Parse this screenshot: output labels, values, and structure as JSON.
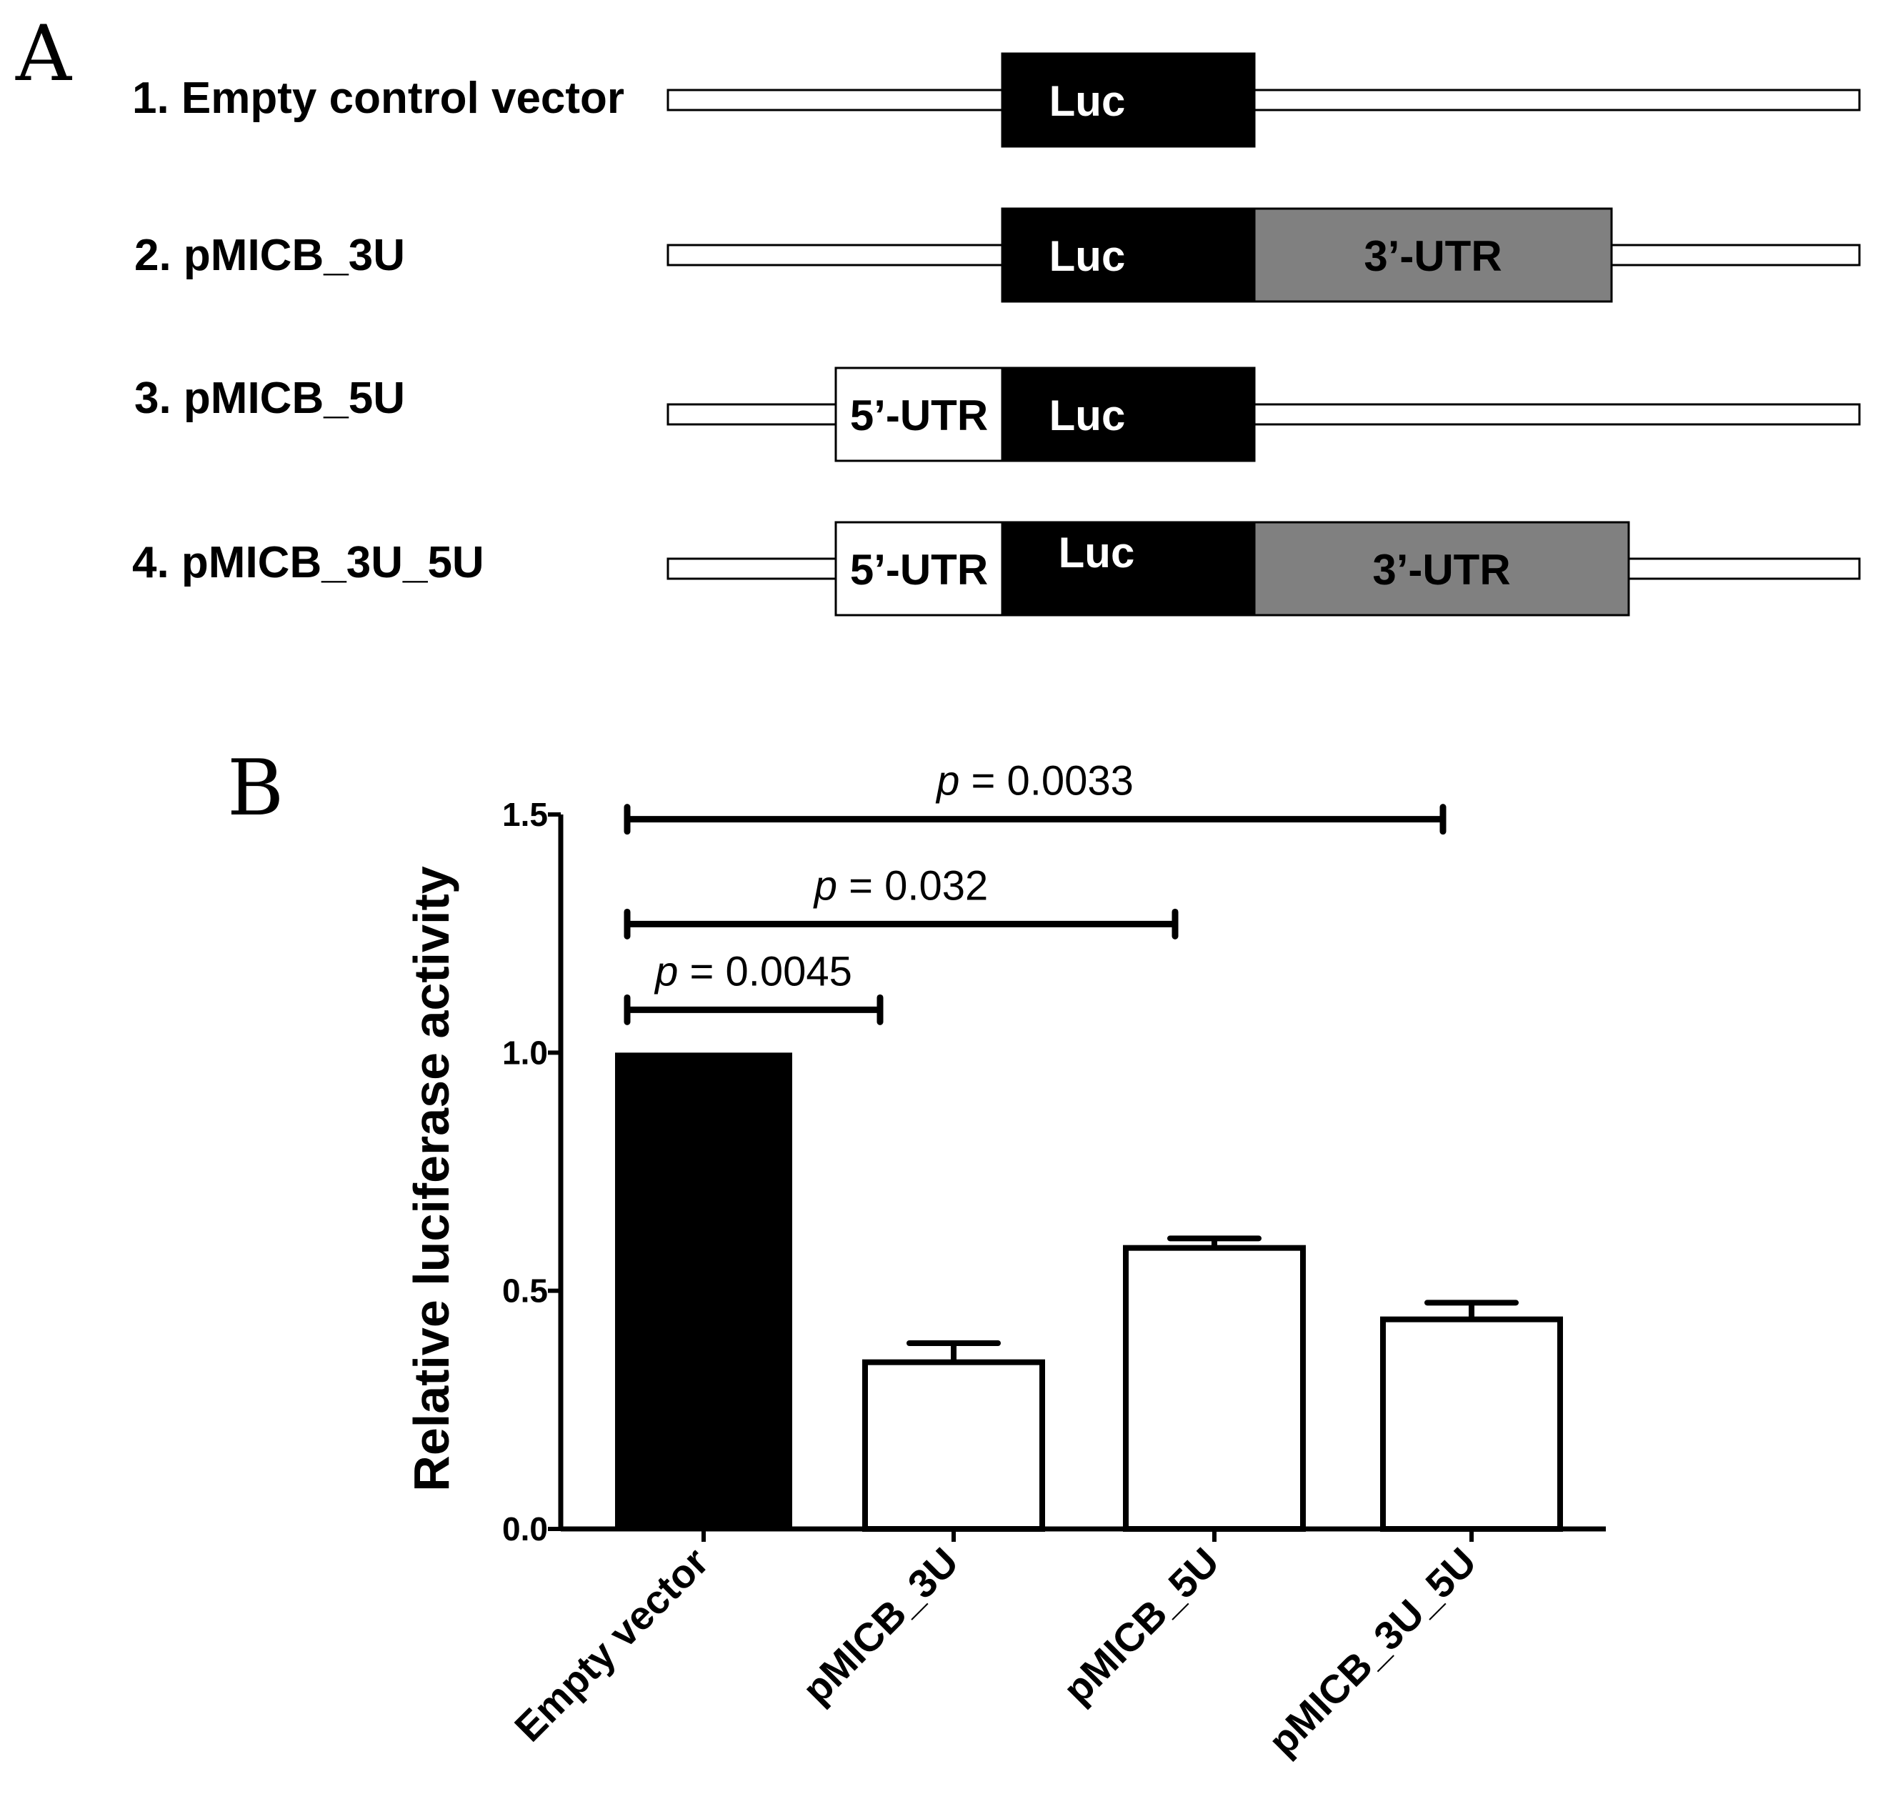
{
  "panel_a": {
    "letter": "A",
    "constructs": [
      {
        "label": "1. Empty control vector",
        "segments": [
          {
            "type": "luc",
            "text": "Luc"
          }
        ]
      },
      {
        "label": "2. pMICB_3U",
        "segments": [
          {
            "type": "luc",
            "text": "Luc"
          },
          {
            "type": "utr3",
            "text": "3’-UTR"
          }
        ]
      },
      {
        "label": "3. pMICB_5U",
        "segments": [
          {
            "type": "utr5",
            "text": "5’-UTR"
          },
          {
            "type": "luc",
            "text": "Luc"
          }
        ]
      },
      {
        "label": "4. pMICB_3U_5U",
        "segments": [
          {
            "type": "utr5",
            "text": "5’-UTR"
          },
          {
            "type": "luc",
            "text": "Luc"
          },
          {
            "type": "utr3",
            "text": "3’-UTR"
          }
        ]
      }
    ],
    "colors": {
      "luc": "#000000",
      "utr3": "#808080",
      "utr5": "#ffffff",
      "backbone": "#ffffff"
    }
  },
  "panel_b": {
    "letter": "B"
  },
  "chart_data": {
    "type": "bar",
    "title": "",
    "xlabel": "",
    "ylabel": "Relative luciferase activity",
    "ylim": [
      0,
      1.5
    ],
    "yticks": [
      "0.0",
      "0.5",
      "1.0",
      "1.5"
    ],
    "categories": [
      "Empty vector",
      "pMICB_3U",
      "pMICB_5U",
      "pMICB_3U_5U"
    ],
    "values": [
      1.0,
      0.35,
      0.59,
      0.44
    ],
    "errors": [
      0.0,
      0.04,
      0.02,
      0.035
    ],
    "bar_colors": [
      "#000000",
      "#ffffff",
      "#ffffff",
      "#ffffff"
    ],
    "grid": false,
    "significance": [
      {
        "from": 0,
        "to": 1,
        "y": 1.09,
        "p_symbol": "p",
        "p_text": " = 0.0045"
      },
      {
        "from": 0,
        "to": 2,
        "y": 1.27,
        "p_symbol": "p",
        "p_text": " = 0.032"
      },
      {
        "from": 0,
        "to": 3,
        "y": 1.49,
        "p_symbol": "p",
        "p_text": " = 0.0033"
      }
    ]
  }
}
